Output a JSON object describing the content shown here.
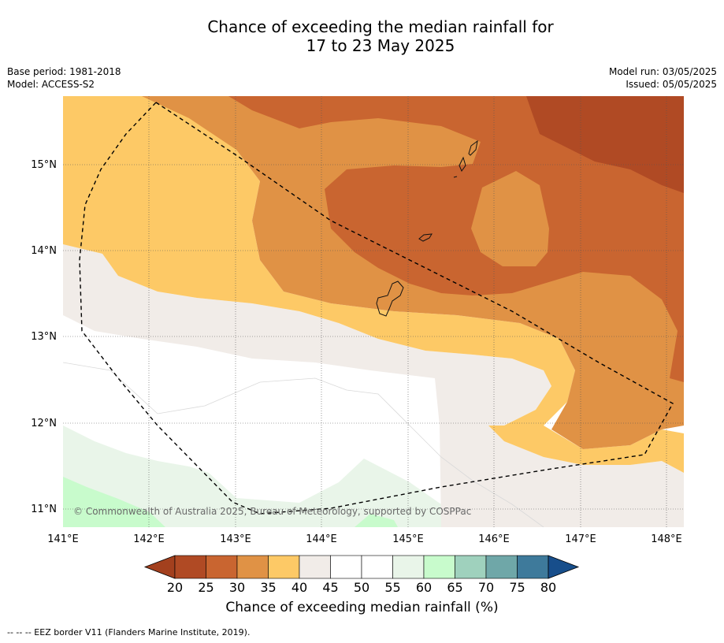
{
  "title_line1": "Chance of exceeding the median rainfall for",
  "title_line2": "17 to 23 May 2025",
  "info_left": {
    "base_period": "Base period: 1981-2018",
    "model": "Model: ACCESS-S2"
  },
  "info_right": {
    "model_run": "Model run: 03/05/2025",
    "issued": "Issued: 05/05/2025"
  },
  "map": {
    "lat_labels": [
      "15°N",
      "14°N",
      "13°N",
      "12°N",
      "11°N"
    ],
    "lon_labels": [
      "141°E",
      "142°E",
      "143°E",
      "144°E",
      "145°E",
      "146°E",
      "147°E",
      "148°E"
    ],
    "copyright": "© Commonwealth of Australia 2025, Bureau of Meteorology, supported by COSPPac"
  },
  "colorbar": {
    "ticks": [
      "20",
      "25",
      "30",
      "35",
      "40",
      "45",
      "50",
      "55",
      "60",
      "65",
      "70",
      "75",
      "80"
    ],
    "colors": [
      "#a3401e",
      "#b04a24",
      "#c96530",
      "#e09245",
      "#fdc966",
      "#f1ece8",
      "#ffffff",
      "#ffffff",
      "#e9f5e9",
      "#c8fbcc",
      "#9fd1bd",
      "#6fa7a8",
      "#3e7a9b",
      "#174e8b"
    ],
    "label": "Chance of exceeding median rainfall (%)"
  },
  "footer": "--  --  -- EEZ border V11 (Flanders Marine Institute, 2019)."
}
